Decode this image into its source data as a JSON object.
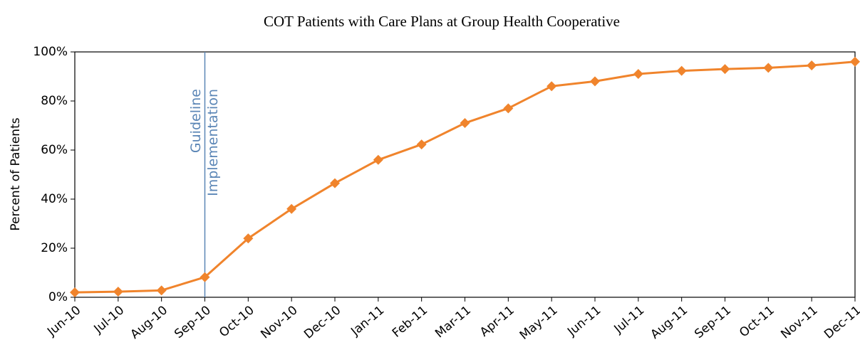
{
  "chart_data": {
    "type": "line",
    "title": "COT Patients with Care Plans at Group Health Cooperative",
    "y_label": "Percent of Patients",
    "categories": [
      "Jun-10",
      "Jul-10",
      "Aug-10",
      "Sep-10",
      "Oct-10",
      "Nov-10",
      "Dec-10",
      "Jan-11",
      "Feb-11",
      "Mar-11",
      "Apr-11",
      "May-11",
      "Jun-11",
      "Jul-11",
      "Aug-11",
      "Sep-11",
      "Oct-11",
      "Nov-11",
      "Dec-11"
    ],
    "series": [
      {
        "name": "COT Patients with Care Plans",
        "color": "#f0842c",
        "values": [
          2,
          2.3,
          2.8,
          8.2,
          24,
          36,
          46.5,
          56,
          62.3,
          71,
          77,
          86,
          88,
          91,
          92.3,
          93,
          93.5,
          94.5,
          96
        ]
      }
    ],
    "ylim": [
      0,
      100
    ],
    "yticks": [
      {
        "value": 0,
        "label": "0%"
      },
      {
        "value": 20,
        "label": "20%"
      },
      {
        "value": 40,
        "label": "40%"
      },
      {
        "value": 60,
        "label": "60%"
      },
      {
        "value": 80,
        "label": "80%"
      },
      {
        "value": 100,
        "label": "100%"
      }
    ],
    "annotation": {
      "text": [
        "Guideline",
        "Implementation"
      ],
      "x": "Sep-10",
      "color": "#5b86b6"
    }
  }
}
